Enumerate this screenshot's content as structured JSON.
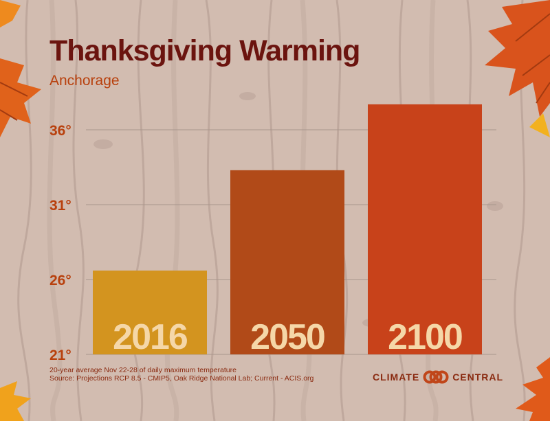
{
  "header": {
    "title": "Thanksgiving Warming",
    "subtitle": "Anchorage"
  },
  "footnote": {
    "line1": "20-year average Nov 22-28 of daily maximum temperature",
    "line2": "Source: Projections RCP 8.5 - CMIP5, Oak Ridge National Lab; Current - ACIS.org"
  },
  "logo": {
    "word1": "CLIMATE",
    "word2": "CENTRAL"
  },
  "colors": {
    "title": "#6b140f",
    "accent": "#b8400d",
    "background": "#d2bcb0",
    "bar_2016": "#d3941f",
    "bar_2050": "#b14a18",
    "bar_2100": "#c8421a",
    "bar_label": "#f5d7a8",
    "tick_label": "#b8400d",
    "gridline": "#a8968c"
  },
  "chart_data": {
    "type": "bar",
    "title": "Thanksgiving Warming",
    "subtitle": "Anchorage",
    "xlabel": "",
    "ylabel": "",
    "categories": [
      "2016",
      "2050",
      "2100"
    ],
    "values": [
      26.6,
      33.3,
      37.7
    ],
    "ylim": [
      21,
      38.5
    ],
    "yticks": [
      21,
      26,
      31,
      36
    ],
    "ytick_labels": [
      "21°",
      "26°",
      "31°",
      "36°"
    ],
    "grid": true,
    "legend": "none"
  }
}
